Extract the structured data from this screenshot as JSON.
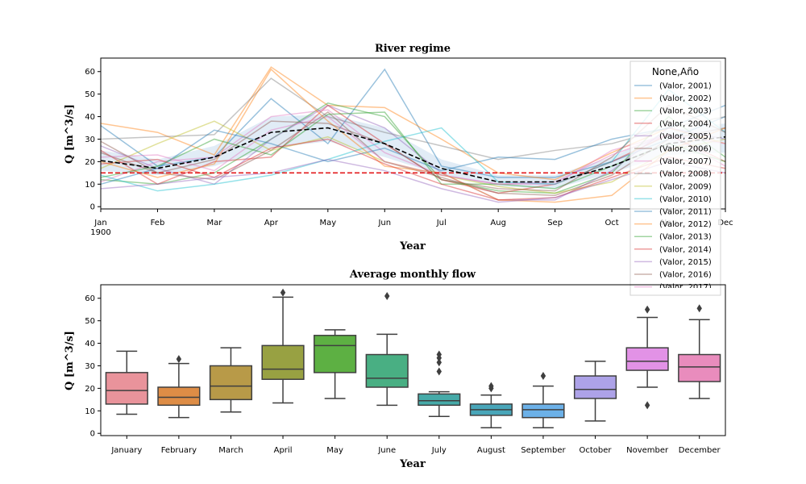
{
  "chart_data": [
    {
      "type": "line",
      "title": "River regime",
      "xlabel": "Year",
      "ylabel": "Q [m^3/s]",
      "ylim": [
        -1,
        66
      ],
      "x_ticks": [
        "Jan",
        "Feb",
        "Mar",
        "Apr",
        "May",
        "Jun",
        "Jul",
        "Aug",
        "Sep",
        "Oct",
        "Nov",
        "Dec"
      ],
      "x_tick_sub": "1900",
      "y_ticks": [
        0,
        10,
        20,
        30,
        40,
        50,
        60
      ],
      "grid": false,
      "legend": {
        "title": "None,Año",
        "placement": "right",
        "entries": [
          "(Valor, 2001)",
          "(Valor, 2002)",
          "(Valor, 2003)",
          "(Valor, 2004)",
          "(Valor, 2005)",
          "(Valor, 2006)",
          "(Valor, 2007)",
          "(Valor, 2008)",
          "(Valor, 2009)",
          "(Valor, 2010)",
          "(Valor, 2011)",
          "(Valor, 2012)",
          "(Valor, 2013)",
          "(Valor, 2014)",
          "(Valor, 2015)",
          "(Valor, 2016)",
          "(Valor, 2017)"
        ]
      },
      "series": [
        {
          "name": "(Valor, 2001)",
          "color": "#1f77b4",
          "values": [
            36,
            18,
            22,
            48,
            28,
            61,
            18,
            13,
            13,
            20,
            30,
            40
          ]
        },
        {
          "name": "(Valor, 2002)",
          "color": "#ff7f0e",
          "values": [
            37,
            33,
            23,
            62,
            45,
            44,
            30,
            15,
            12,
            24,
            35,
            28
          ]
        },
        {
          "name": "(Valor, 2003)",
          "color": "#2ca02c",
          "values": [
            12,
            10,
            15,
            30,
            46,
            40,
            12,
            7,
            6,
            15,
            40,
            22
          ]
        },
        {
          "name": "(Valor, 2004)",
          "color": "#d62728",
          "values": [
            25,
            10,
            20,
            22,
            45,
            28,
            12,
            6,
            10,
            20,
            32,
            20
          ]
        },
        {
          "name": "(Valor, 2005)",
          "color": "#9467bd",
          "values": [
            27,
            17,
            10,
            30,
            45,
            35,
            15,
            3,
            3,
            16,
            35,
            30
          ]
        },
        {
          "name": "(Valor, 2006)",
          "color": "#8c564b",
          "values": [
            29,
            15,
            12,
            25,
            42,
            20,
            13,
            6,
            5,
            14,
            30,
            35
          ]
        },
        {
          "name": "(Valor, 2007)",
          "color": "#e377c2",
          "values": [
            11,
            20,
            22,
            40,
            43,
            24,
            14,
            10,
            10,
            25,
            32,
            18
          ]
        },
        {
          "name": "(Valor, 2008)",
          "color": "#7f7f7f",
          "values": [
            30,
            31,
            32,
            57,
            40,
            33,
            27,
            21,
            25,
            28,
            35,
            40
          ]
        },
        {
          "name": "(Valor, 2009)",
          "color": "#bcbd22",
          "values": [
            17,
            28,
            38,
            25,
            31,
            20,
            14,
            9,
            6,
            11,
            25,
            30
          ]
        },
        {
          "name": "(Valor, 2010)",
          "color": "#17becf",
          "values": [
            14,
            7,
            10,
            14,
            21,
            29,
            35,
            11,
            10,
            20,
            52,
            33
          ]
        },
        {
          "name": "(Valor, 2011)",
          "color": "#1f77b4",
          "values": [
            10,
            17,
            34,
            28,
            20,
            26,
            16,
            22,
            21,
            30,
            35,
            45
          ]
        },
        {
          "name": "(Valor, 2012)",
          "color": "#ff7f0e",
          "values": [
            20,
            13,
            19,
            61,
            38,
            18,
            15,
            3,
            2,
            5,
            25,
            35
          ]
        },
        {
          "name": "(Valor, 2013)",
          "color": "#2ca02c",
          "values": [
            13,
            18,
            30,
            23,
            41,
            42,
            10,
            10,
            8,
            18,
            28,
            20
          ]
        },
        {
          "name": "(Valor, 2014)",
          "color": "#d62728",
          "values": [
            19,
            21,
            13,
            26,
            30,
            19,
            10,
            3,
            4,
            13,
            22,
            17
          ]
        },
        {
          "name": "(Valor, 2015)",
          "color": "#9467bd",
          "values": [
            8,
            10,
            13,
            15,
            21,
            16,
            8,
            2,
            4,
            12,
            20,
            15
          ]
        },
        {
          "name": "(Valor, 2016)",
          "color": "#8c564b",
          "values": [
            24,
            15,
            21,
            38,
            37,
            28,
            12,
            8,
            7,
            22,
            45,
            33
          ]
        },
        {
          "name": "(Valor, 2017)",
          "color": "#e377c2",
          "values": [
            22,
            23,
            16,
            34,
            40,
            20,
            14,
            10,
            11,
            23,
            32,
            28
          ]
        }
      ],
      "mean": [
        20.5,
        17,
        22,
        33,
        35,
        28,
        17,
        11,
        11,
        18,
        28,
        31
      ],
      "ci_lower": [
        16,
        14,
        18,
        26,
        29,
        22,
        14,
        9,
        8,
        15,
        23,
        24
      ],
      "ci_upper": [
        25,
        21,
        27,
        40,
        41,
        35,
        21,
        14,
        14,
        22,
        34,
        37
      ],
      "threshold": 15
    },
    {
      "type": "box",
      "title": "Average monthly flow",
      "xlabel": "Year",
      "ylabel": "Q [m^3/s]",
      "ylim": [
        -1,
        66
      ],
      "y_ticks": [
        0,
        10,
        20,
        30,
        40,
        50,
        60
      ],
      "categories": [
        "January",
        "February",
        "March",
        "April",
        "May",
        "June",
        "July",
        "August",
        "September",
        "October",
        "November",
        "December"
      ],
      "colors": [
        "#e9939b",
        "#de8d46",
        "#b89a48",
        "#98a142",
        "#5db043",
        "#49af83",
        "#46aaa8",
        "#49a6b9",
        "#6cb1e8",
        "#ada2e8",
        "#e292e6",
        "#e98cbd"
      ],
      "boxes": [
        {
          "whislo": 8.5,
          "q1": 13,
          "med": 19,
          "q3": 27,
          "whishi": 36.5,
          "fliers": []
        },
        {
          "whislo": 7,
          "q1": 12.5,
          "med": 16,
          "q3": 20.5,
          "whishi": 31,
          "fliers": [
            33
          ]
        },
        {
          "whislo": 9.5,
          "q1": 15,
          "med": 21,
          "q3": 30,
          "whishi": 38,
          "fliers": []
        },
        {
          "whislo": 13.5,
          "q1": 24,
          "med": 28.5,
          "q3": 39,
          "whishi": 60.5,
          "fliers": [
            62.5
          ]
        },
        {
          "whislo": 15.5,
          "q1": 27,
          "med": 39,
          "q3": 43.5,
          "whishi": 46,
          "fliers": []
        },
        {
          "whislo": 12.5,
          "q1": 20.5,
          "med": 24.5,
          "q3": 35,
          "whishi": 44,
          "fliers": [
            61
          ]
        },
        {
          "whislo": 7.5,
          "q1": 12.5,
          "med": 14.5,
          "q3": 17.5,
          "whishi": 18.5,
          "fliers": [
            35,
            33.5,
            31.5,
            27.5
          ]
        },
        {
          "whislo": 2.5,
          "q1": 8,
          "med": 10.5,
          "q3": 13,
          "whishi": 17,
          "fliers": [
            21,
            20
          ]
        },
        {
          "whislo": 2.5,
          "q1": 7,
          "med": 10.5,
          "q3": 13,
          "whishi": 21,
          "fliers": [
            25.5
          ]
        },
        {
          "whislo": 5.5,
          "q1": 15.5,
          "med": 19.5,
          "q3": 25.5,
          "whishi": 32,
          "fliers": []
        },
        {
          "whislo": 20.5,
          "q1": 28,
          "med": 32,
          "q3": 38,
          "whishi": 51.5,
          "fliers": [
            55,
            12.5
          ]
        },
        {
          "whislo": 15.5,
          "q1": 23,
          "med": 29.5,
          "q3": 35,
          "whishi": 50.5,
          "fliers": [
            55.5
          ]
        }
      ]
    }
  ]
}
